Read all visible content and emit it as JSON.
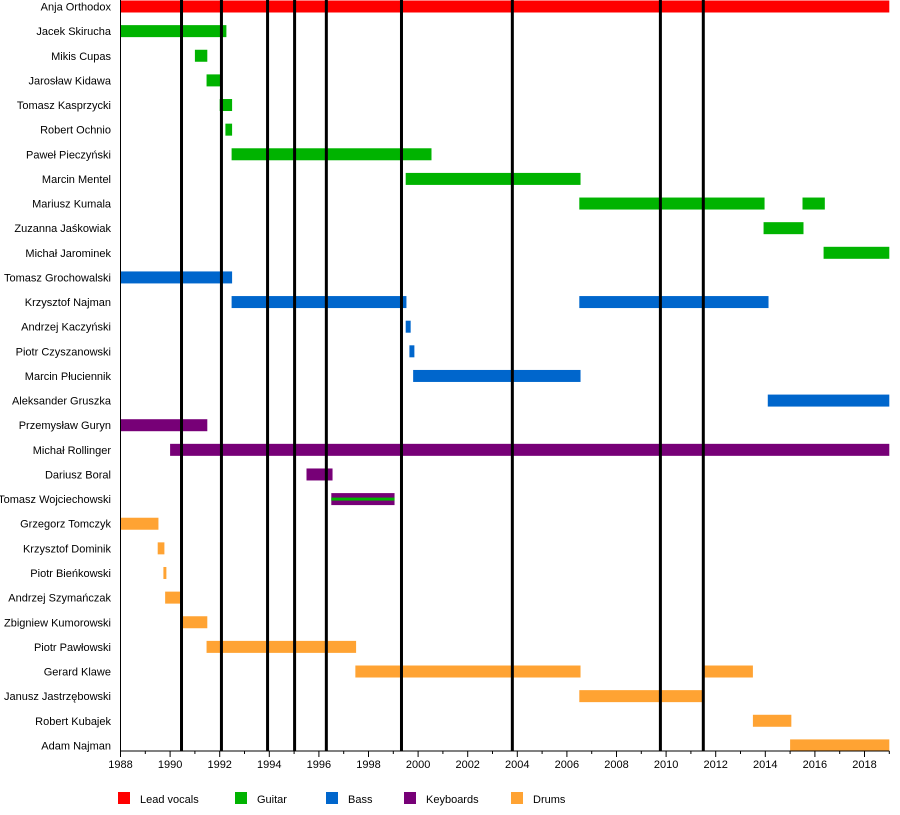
{
  "chart_data": {
    "type": "timeline",
    "x_range": [
      1988,
      2019
    ],
    "x_ticks": [
      "1988",
      "1990",
      "1992",
      "1994",
      "1996",
      "1998",
      "2000",
      "2002",
      "2004",
      "2006",
      "2008",
      "2010",
      "2012",
      "2014",
      "2016",
      "2018"
    ],
    "roles": [
      {
        "key": "vocals",
        "label": "Lead vocals",
        "color": "#ff0000"
      },
      {
        "key": "guitar",
        "label": "Guitar",
        "color": "#00b300"
      },
      {
        "key": "bass",
        "label": "Bass",
        "color": "#0066cc"
      },
      {
        "key": "keyboards",
        "label": "Keyboards",
        "color": "#770077"
      },
      {
        "key": "drums",
        "label": "Drums",
        "color": "#ffa333"
      }
    ],
    "event_lines": [
      1990.46,
      1992.07,
      1993.93,
      1995.02,
      1996.3,
      1999.33,
      2003.8,
      2009.77,
      2011.5
    ],
    "members": [
      {
        "name": "Anja Orthodox",
        "periods": [
          {
            "role": "vocals",
            "start": 1988,
            "end": 2019
          }
        ]
      },
      {
        "name": "Jacek Skirucha",
        "periods": [
          {
            "role": "guitar",
            "start": 1988,
            "end": 1992.27
          }
        ]
      },
      {
        "name": "Mikis Cupas",
        "periods": [
          {
            "role": "guitar",
            "start": 1991.0,
            "end": 1991.5
          }
        ]
      },
      {
        "name": "Jarosław Kidawa",
        "periods": [
          {
            "role": "guitar",
            "start": 1991.47,
            "end": 1992.03
          }
        ]
      },
      {
        "name": "Tomasz Kasprzycki",
        "periods": [
          {
            "role": "guitar",
            "start": 1992.0,
            "end": 1992.5
          }
        ]
      },
      {
        "name": "Robert Ochnio",
        "periods": [
          {
            "role": "guitar",
            "start": 1992.23,
            "end": 1992.5
          }
        ]
      },
      {
        "name": "Paweł Pieczyński",
        "periods": [
          {
            "role": "guitar",
            "start": 1992.48,
            "end": 2000.54
          }
        ]
      },
      {
        "name": "Marcin Mentel",
        "periods": [
          {
            "role": "guitar",
            "start": 1999.5,
            "end": 2006.55
          }
        ]
      },
      {
        "name": "Mariusz Kumala",
        "periods": [
          {
            "role": "guitar",
            "start": 2006.5,
            "end": 2013.97
          },
          {
            "role": "guitar",
            "start": 2015.5,
            "end": 2016.4
          }
        ]
      },
      {
        "name": "Zuzanna Jaśkowiak",
        "periods": [
          {
            "role": "guitar",
            "start": 2013.93,
            "end": 2015.54
          }
        ]
      },
      {
        "name": "Michał Jarominek",
        "periods": [
          {
            "role": "guitar",
            "start": 2016.35,
            "end": 2019
          }
        ]
      },
      {
        "name": "Tomasz Grochowalski",
        "periods": [
          {
            "role": "bass",
            "start": 1988,
            "end": 1992.5
          }
        ]
      },
      {
        "name": "Krzysztof Najman",
        "periods": [
          {
            "role": "bass",
            "start": 1992.48,
            "end": 1999.53
          },
          {
            "role": "bass",
            "start": 2006.5,
            "end": 2014.13
          }
        ]
      },
      {
        "name": "Andrzej Kaczyński",
        "periods": [
          {
            "role": "bass",
            "start": 1999.5,
            "end": 1999.7
          }
        ]
      },
      {
        "name": "Piotr Czyszanowski",
        "periods": [
          {
            "role": "bass",
            "start": 1999.65,
            "end": 1999.85
          }
        ]
      },
      {
        "name": "Marcin Płuciennik",
        "periods": [
          {
            "role": "bass",
            "start": 1999.8,
            "end": 2006.55
          }
        ]
      },
      {
        "name": "Aleksander Gruszka",
        "periods": [
          {
            "role": "bass",
            "start": 2014.1,
            "end": 2019
          }
        ]
      },
      {
        "name": "Przemysław Guryn",
        "periods": [
          {
            "role": "keyboards",
            "start": 1988,
            "end": 1991.5
          }
        ]
      },
      {
        "name": "Michał Rollinger",
        "periods": [
          {
            "role": "keyboards",
            "start": 1990.0,
            "end": 2019
          }
        ]
      },
      {
        "name": "Dariusz Boral",
        "periods": [
          {
            "role": "keyboards",
            "start": 1995.5,
            "end": 1996.55
          }
        ]
      },
      {
        "name": "Tomasz Wojciechowski",
        "periods": [
          {
            "role": "keyboards",
            "start": 1996.5,
            "end": 1999.05,
            "secondary": "guitar"
          }
        ]
      },
      {
        "name": "Grzegorz Tomczyk",
        "periods": [
          {
            "role": "drums",
            "start": 1988,
            "end": 1989.53
          }
        ]
      },
      {
        "name": "Krzysztof Dominik",
        "periods": [
          {
            "role": "drums",
            "start": 1989.5,
            "end": 1989.77
          }
        ]
      },
      {
        "name": "Piotr Bieńkowski",
        "periods": [
          {
            "role": "drums",
            "start": 1989.73,
            "end": 1989.85
          }
        ]
      },
      {
        "name": "Andrzej Szymańczak",
        "periods": [
          {
            "role": "drums",
            "start": 1989.8,
            "end": 1990.5
          }
        ]
      },
      {
        "name": "Zbigniew Kumorowski",
        "periods": [
          {
            "role": "drums",
            "start": 1990.46,
            "end": 1991.5
          }
        ]
      },
      {
        "name": "Piotr Pawłowski",
        "periods": [
          {
            "role": "drums",
            "start": 1991.47,
            "end": 1997.5
          }
        ]
      },
      {
        "name": "Gerard Klawe",
        "periods": [
          {
            "role": "drums",
            "start": 1997.47,
            "end": 2006.55
          },
          {
            "role": "drums",
            "start": 2011.5,
            "end": 2013.5
          }
        ]
      },
      {
        "name": "Janusz Jastrzębowski",
        "periods": [
          {
            "role": "drums",
            "start": 2006.5,
            "end": 2011.55
          }
        ]
      },
      {
        "name": "Robert Kubajek",
        "periods": [
          {
            "role": "drums",
            "start": 2013.5,
            "end": 2015.05
          }
        ]
      },
      {
        "name": "Adam Najman",
        "periods": [
          {
            "role": "drums",
            "start": 2015.0,
            "end": 2019
          }
        ]
      }
    ],
    "legend_position": "bottom"
  }
}
